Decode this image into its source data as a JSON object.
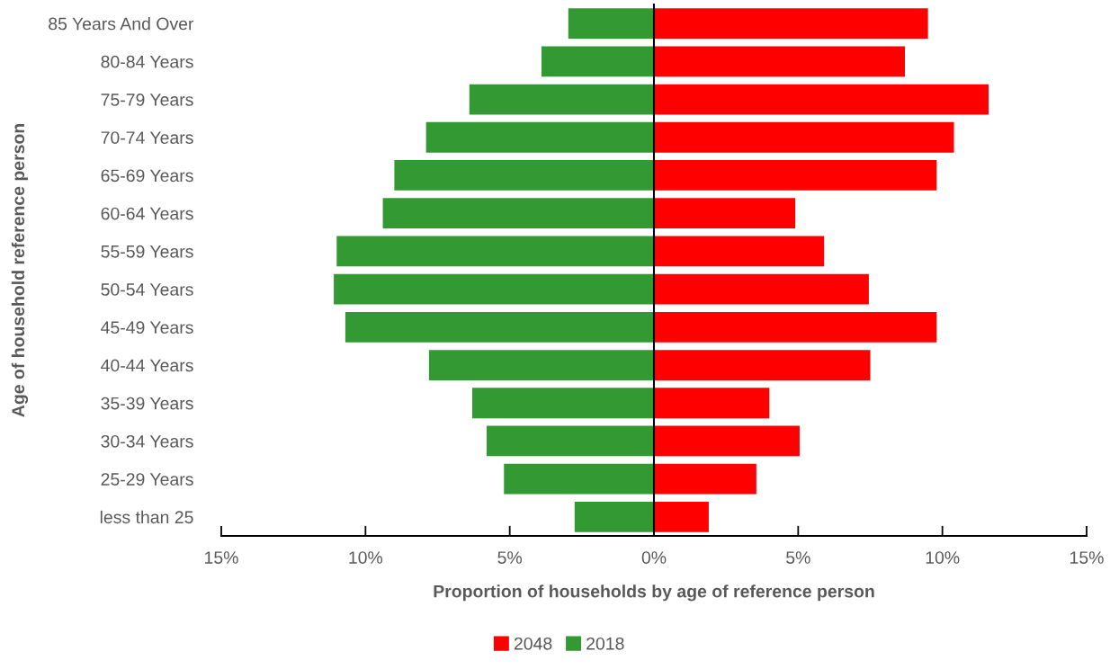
{
  "chart_data": {
    "type": "bar",
    "orientation": "horizontal",
    "xlabel": "Proportion of households by age of reference person",
    "ylabel": "Age of household reference person",
    "categories": [
      "85 Years And Over",
      "80-84 Years",
      "75-79 Years",
      "70-74 Years",
      "65-69 Years",
      "60-64 Years",
      "55-59 Years",
      "50-54 Years",
      "45-49 Years",
      "40-44 Years",
      "35-39 Years",
      "30-34 Years",
      "25-29 Years",
      "less than 25"
    ],
    "series": [
      {
        "name": "2048",
        "color": "#ff0000",
        "values": [
          9.5,
          8.7,
          11.6,
          10.4,
          9.8,
          4.9,
          5.9,
          7.45,
          9.8,
          7.5,
          4.0,
          5.05,
          3.55,
          1.9
        ]
      },
      {
        "name": "2018",
        "color": "#339933",
        "values": [
          -2.97,
          -3.9,
          -6.4,
          -7.9,
          -9.0,
          -9.4,
          -11.0,
          -11.1,
          -10.7,
          -7.8,
          -6.3,
          -5.8,
          -5.2,
          -2.75
        ]
      }
    ],
    "xlim": [
      -15,
      15
    ],
    "xticks": [
      {
        "value": -15,
        "label": "15%"
      },
      {
        "value": -10,
        "label": "10%"
      },
      {
        "value": -5,
        "label": "5%"
      },
      {
        "value": 0,
        "label": "0%"
      },
      {
        "value": 5,
        "label": "5%"
      },
      {
        "value": 10,
        "label": "10%"
      },
      {
        "value": 15,
        "label": "15%"
      }
    ],
    "stacked": true,
    "legend": "bottom"
  }
}
